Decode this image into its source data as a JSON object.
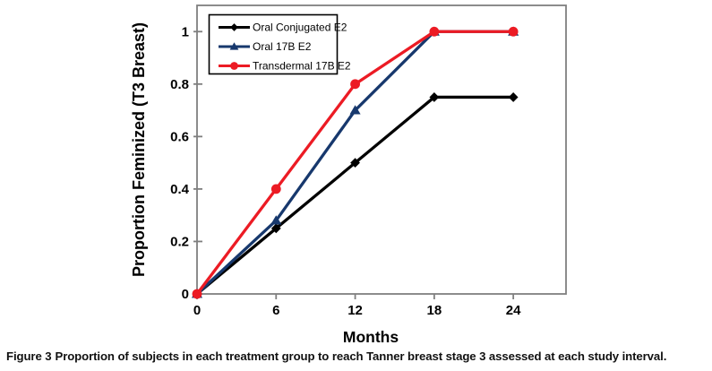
{
  "figure": {
    "label": "Figure 3",
    "caption": "Proportion of subjects in each treatment group to reach Tanner breast stage 3 assessed at each study interval."
  },
  "chart_data": {
    "type": "line",
    "title": "",
    "xlabel": "Months",
    "ylabel": "Proportion Feminized (T3 Breast)",
    "x": [
      0,
      6,
      12,
      18,
      24
    ],
    "x_tick_labels": [
      "0",
      "6",
      "12",
      "18",
      "24"
    ],
    "y_tick_values": [
      0,
      0.2,
      0.4,
      0.6,
      0.8,
      1
    ],
    "y_tick_labels": [
      "0",
      "0.2",
      "0.4",
      "0.6",
      "0.8",
      "1"
    ],
    "xlim": [
      0,
      28
    ],
    "ylim": [
      0,
      1.1
    ],
    "grid": false,
    "legend_position": "top-left",
    "axis_color": "#7f7f7f",
    "legend_border_color": "#000000",
    "series": [
      {
        "name": "Oral Conjugated E2",
        "color": "#000000",
        "marker": "diamond",
        "values": [
          0,
          0.25,
          0.5,
          0.75,
          0.75
        ]
      },
      {
        "name": "Oral 17B E2",
        "color": "#17386D",
        "marker": "triangle",
        "values": [
          0,
          0.28,
          0.7,
          1,
          1
        ]
      },
      {
        "name": "Transdermal 17B E2",
        "color": "#EC1B24",
        "marker": "circle",
        "values": [
          0,
          0.4,
          0.8,
          1,
          1
        ]
      }
    ]
  }
}
